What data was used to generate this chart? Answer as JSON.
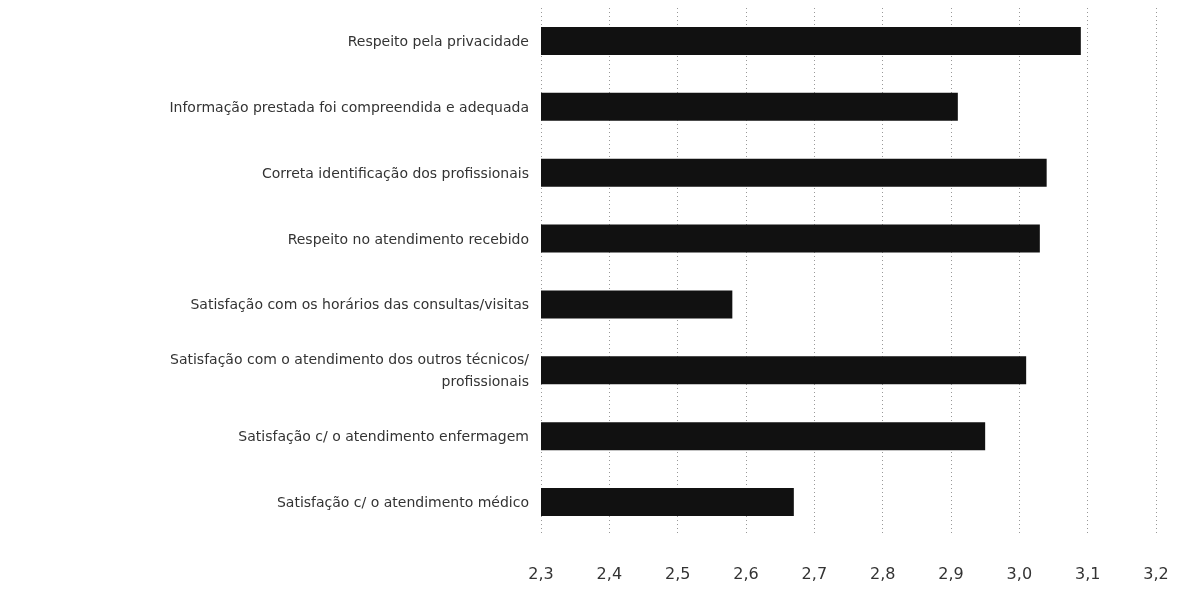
{
  "chart_data": {
    "type": "bar",
    "orientation": "horizontal",
    "categories": [
      "Respeito pela privacidade",
      "Informação prestada foi compreendida e adequada",
      "Correta identificação dos profissionais",
      "Respeito no atendimento recebido",
      "Satisfação com os horários das consultas/visitas",
      "Satisfação com o atendimento dos outros técnicos/profissionais",
      "Satisfação c/ o atendimento enfermagem",
      "Satisfação c/ o atendimento médico"
    ],
    "values": [
      3.09,
      2.91,
      3.04,
      3.03,
      2.58,
      3.01,
      2.95,
      2.67
    ],
    "color": "#111111",
    "xlim": [
      2.3,
      3.2
    ],
    "xticks": [
      {
        "value": 2.3,
        "label": "2,3"
      },
      {
        "value": 2.4,
        "label": "2,4"
      },
      {
        "value": 2.5,
        "label": "2,5"
      },
      {
        "value": 2.6,
        "label": "2,6"
      },
      {
        "value": 2.7,
        "label": "2,7"
      },
      {
        "value": 2.8,
        "label": "2,8"
      },
      {
        "value": 2.9,
        "label": "2,9"
      },
      {
        "value": 3.0,
        "label": "3,0"
      },
      {
        "value": 3.1,
        "label": "3,1"
      },
      {
        "value": 3.2,
        "label": "3,2"
      }
    ],
    "grid": "x"
  }
}
